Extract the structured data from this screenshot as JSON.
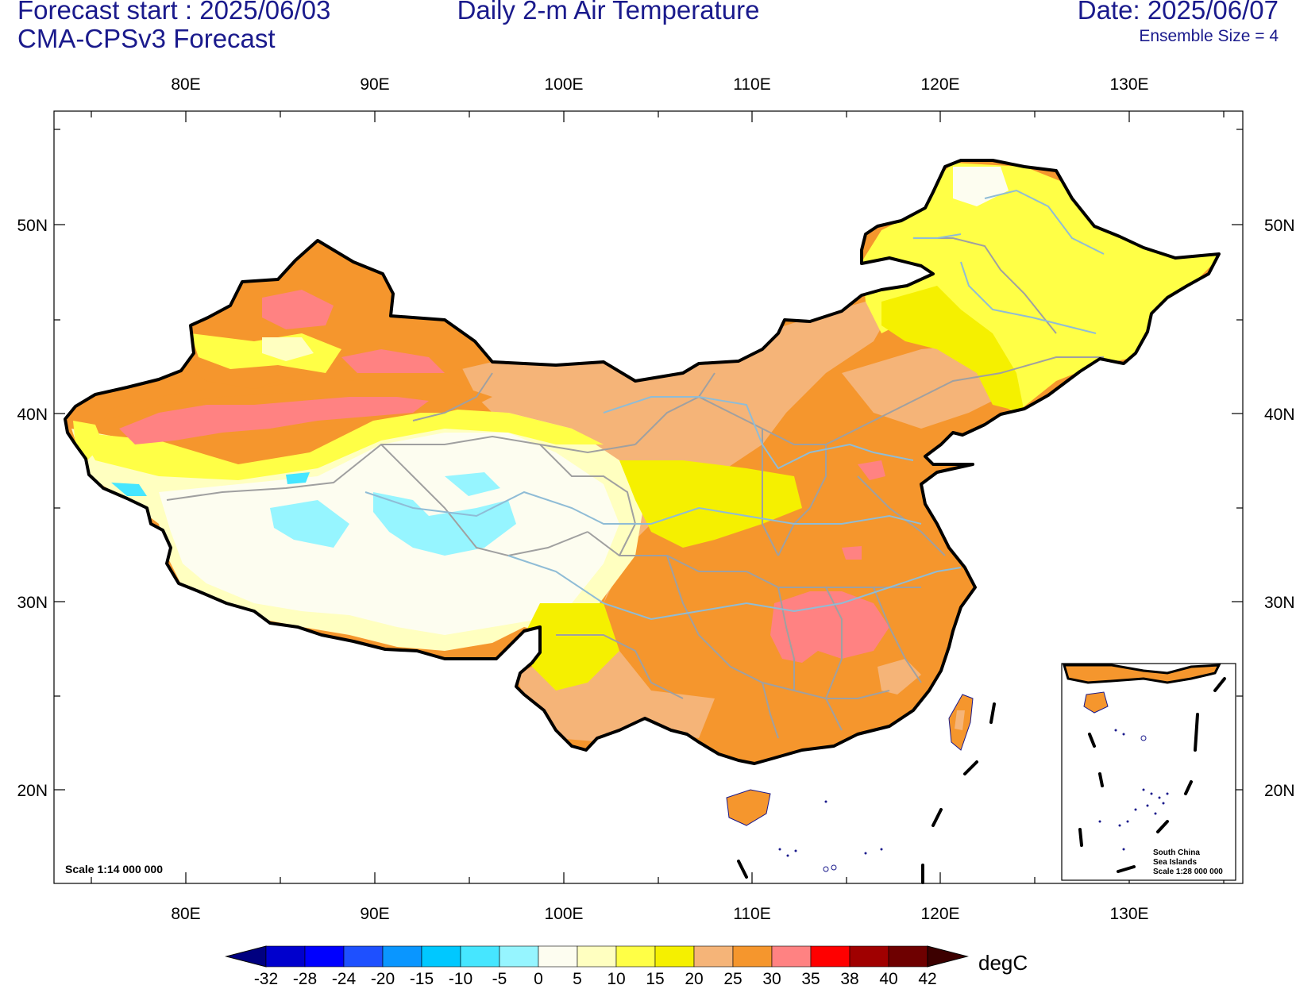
{
  "header": {
    "forecast_start": "Forecast start : 2025/06/03",
    "model": "CMA-CPSv3 Forecast",
    "title": "Daily 2-m Air Temperature",
    "date": "Date: 2025/06/07",
    "ensemble": "Ensemble Size = 4"
  },
  "axes": {
    "lon_labels": [
      "80E",
      "90E",
      "100E",
      "110E",
      "120E",
      "130E"
    ],
    "lat_labels": [
      "50N",
      "40N",
      "30N",
      "20N"
    ]
  },
  "map": {
    "scale_label": "Scale 1:14 000 000",
    "inset": {
      "title_line1": "South China",
      "title_line2": "Sea Islands",
      "scale": "Scale 1:28 000 000"
    }
  },
  "colorbar": {
    "unit": "degC",
    "labels": [
      "-32",
      "-28",
      "-24",
      "-20",
      "-15",
      "-10",
      "-5",
      "0",
      "5",
      "10",
      "15",
      "20",
      "25",
      "30",
      "35",
      "38",
      "40",
      "42"
    ],
    "colors": [
      "#000080",
      "#0000cd",
      "#0000ff",
      "#1e50ff",
      "#0a96ff",
      "#00c8ff",
      "#46e6ff",
      "#96f5ff",
      "#fdfdf0",
      "#ffffc0",
      "#ffff46",
      "#f5f000",
      "#f5b478",
      "#f5962d",
      "#ff8282",
      "#ff0000",
      "#a00000",
      "#6e0000",
      "#3c0000"
    ]
  }
}
